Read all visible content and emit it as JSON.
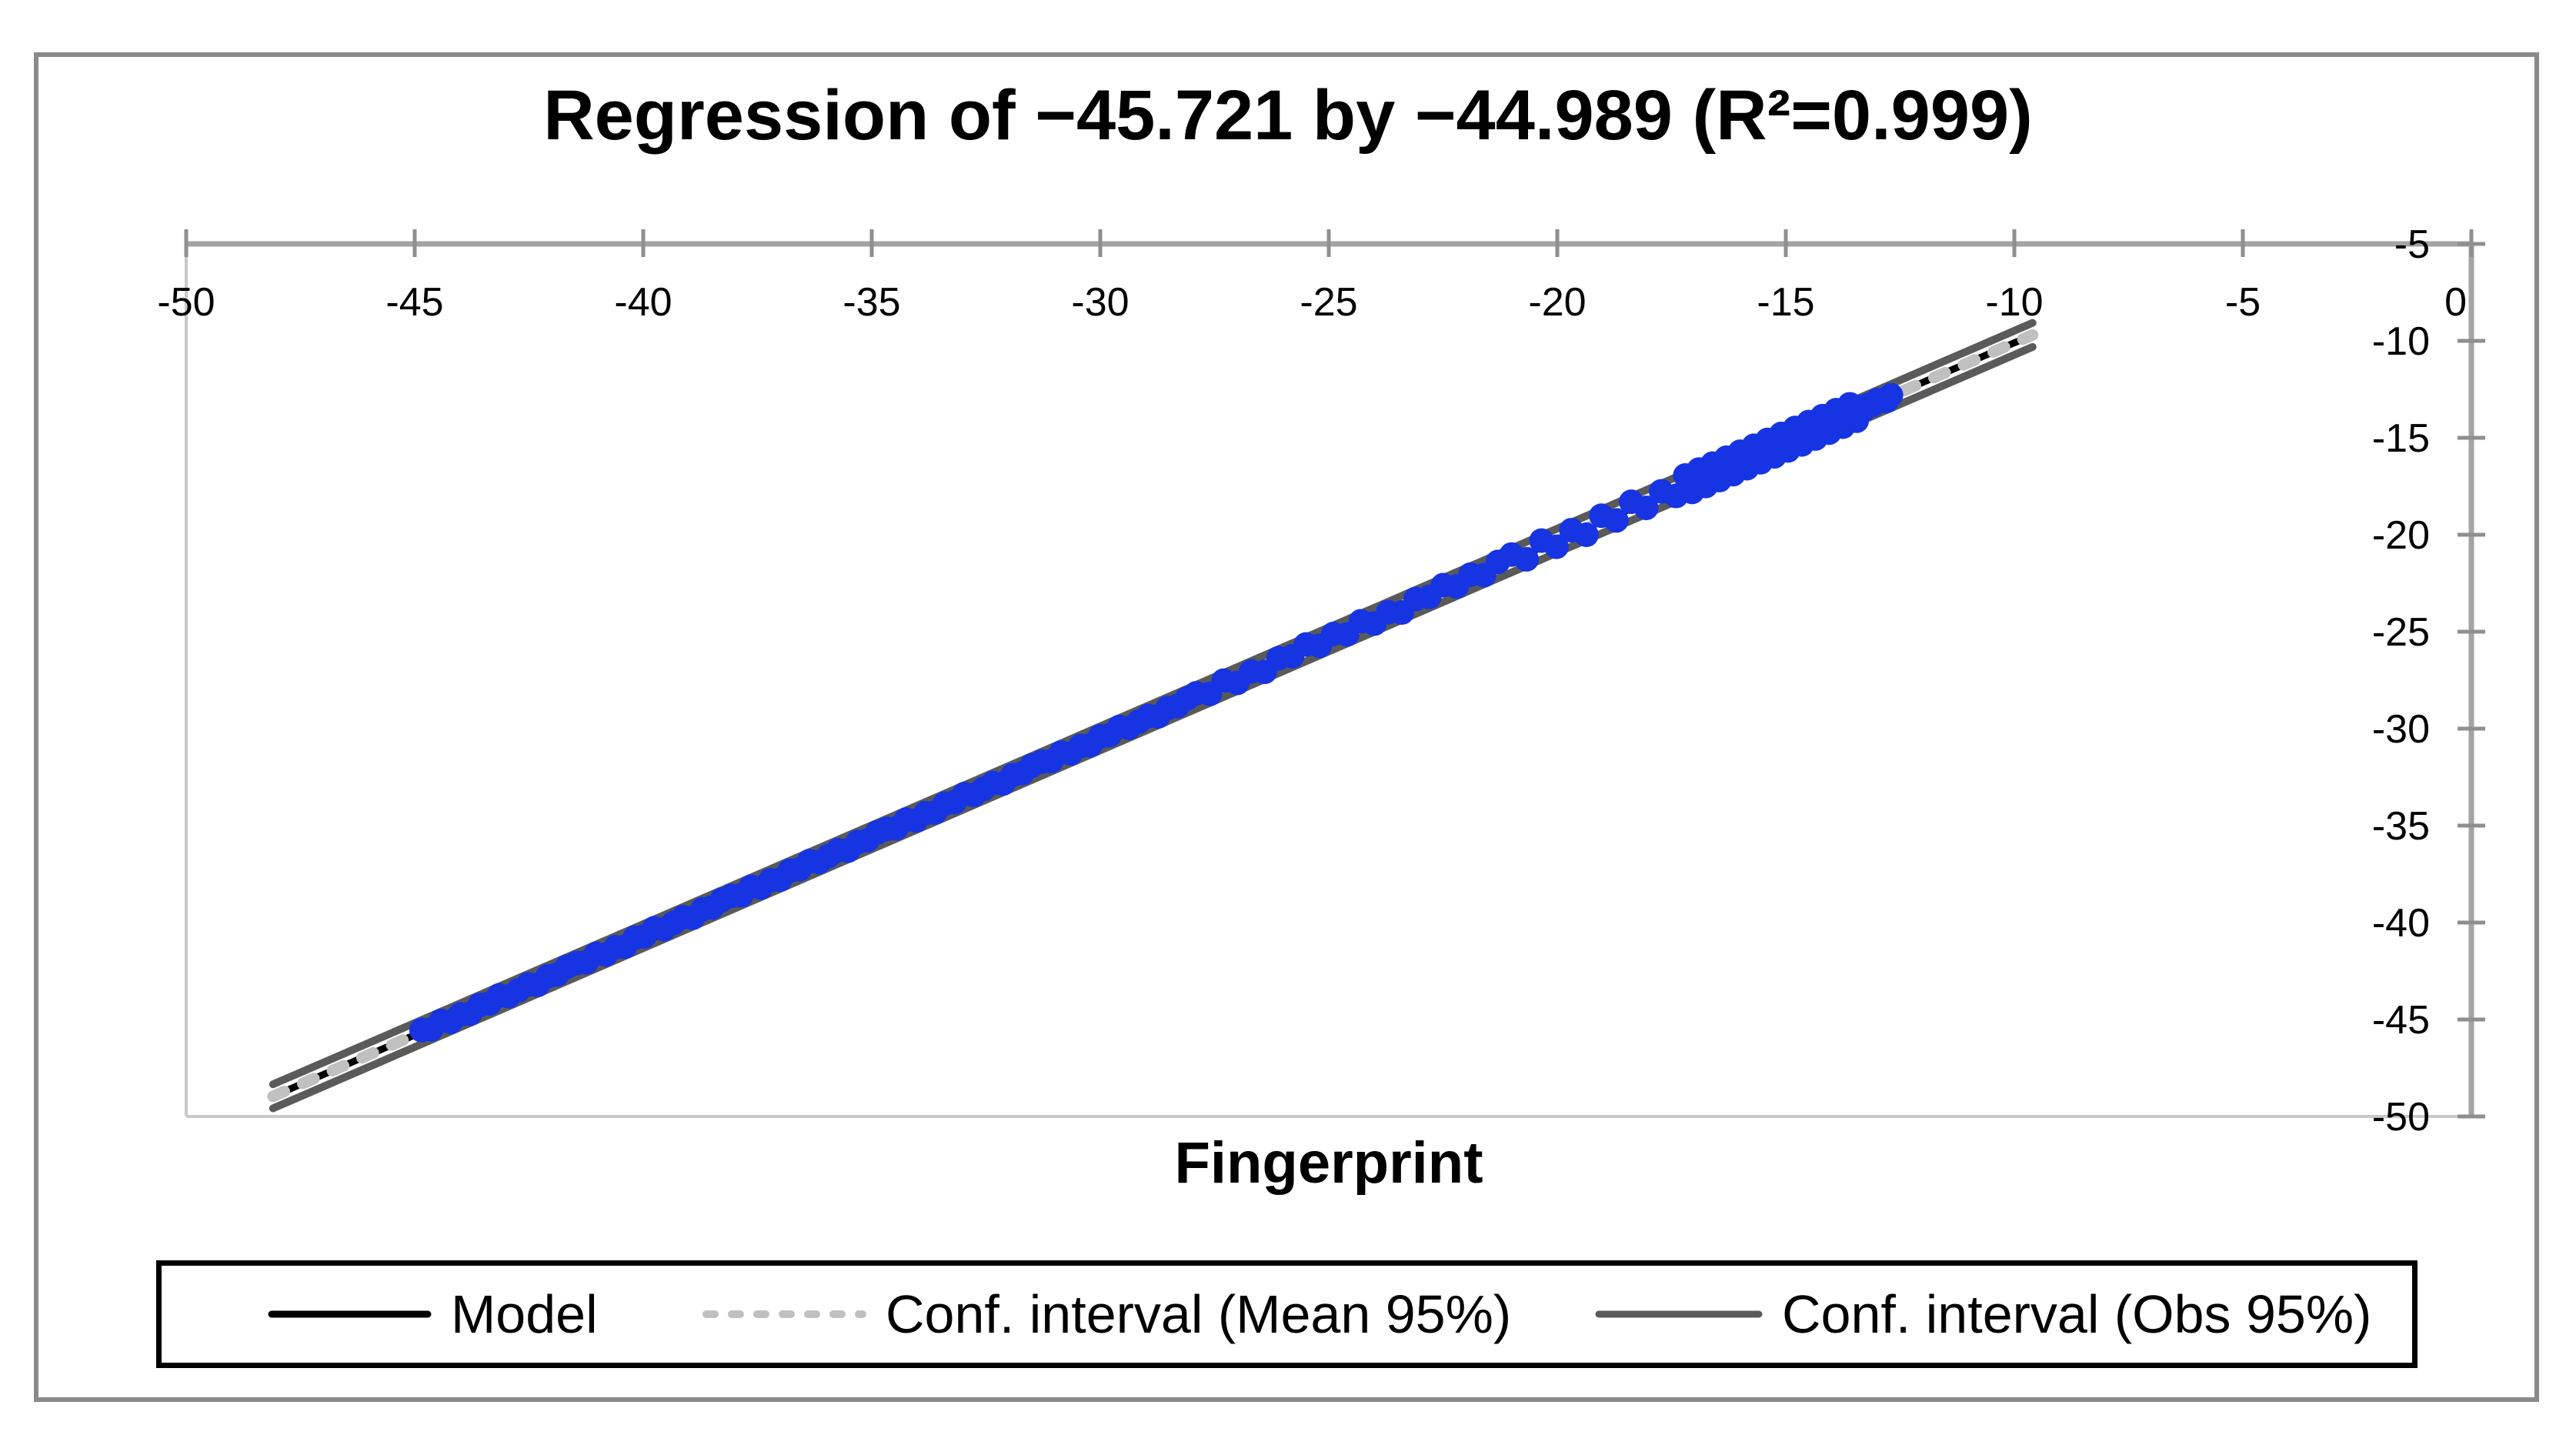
{
  "title": "Regression of −45.721 by −44.989 (R²=0.999)",
  "x_axis_title": "Fingerprint",
  "legend": {
    "model_label": "Model",
    "mean_label": "Conf. interval (Mean 95%)",
    "obs_label": "Conf. interval (Obs 95%)"
  },
  "colors": {
    "point_blue": "#1634e1",
    "model_black": "#000000",
    "ci_mean_silver": "#c0c0c0",
    "ci_obs_gray": "#5a5a5a",
    "axis_gray": "#a3a3a3",
    "tick_gray": "#8f8f8f",
    "plot_border_gray": "#c9c9c9",
    "outer_border_gray": "#8a8a8a",
    "text_black": "#000000"
  },
  "chart_data": {
    "type": "scatter",
    "title": "Regression of −45.721 by −44.989 (R²=0.999)",
    "xlabel": "Fingerprint",
    "ylabel": "",
    "r_squared": 0.999,
    "xlim": [
      -50,
      0
    ],
    "ylim": [
      -50,
      -5
    ],
    "x_ticks": [
      -50,
      -45,
      -40,
      -35,
      -30,
      -25,
      -20,
      -15,
      -10,
      -5,
      0
    ],
    "y_ticks": [
      -5,
      -10,
      -15,
      -20,
      -25,
      -30,
      -35,
      -40,
      -45,
      -50
    ],
    "grid": false,
    "legend_position": "bottom",
    "axis_position": {
      "x_axis": "top",
      "y_axis": "right"
    },
    "model_line": {
      "x_start": -48.1,
      "x_end": -9.6,
      "slope": 1.02,
      "intercept": 0.1
    },
    "ci_obs_offset": 0.62,
    "series": [
      {
        "name": "Model",
        "style": "solid-black"
      },
      {
        "name": "Conf. interval (Mean 95%)",
        "style": "dashed-silver"
      },
      {
        "name": "Conf. interval (Obs 95%)",
        "style": "solid-darkgray"
      }
    ],
    "point_runs": [
      {
        "x_from": -44.85,
        "x_to": -28.1,
        "count": 80,
        "residuals": [
          0.1,
          -0.08,
          0.14,
          -0.12,
          0.04,
          -0.14,
          0.1,
          -0.04,
          0.16,
          -0.1,
          0,
          0.08,
          -0.16,
          0.06,
          -0.06,
          0.12
        ]
      },
      {
        "x_from": -27.9,
        "x_to": -21.3,
        "count": 23,
        "residuals": [
          0.18,
          -0.15,
          0.22,
          -0.2,
          0.08,
          -0.24,
          0.15,
          -0.05,
          0.25,
          -0.12
        ]
      },
      {
        "x_from": -21.0,
        "x_to": -17.4,
        "count": 12,
        "residuals": [
          0.3,
          -0.28,
          0.35,
          -0.3,
          0.22,
          -0.35
        ]
      },
      {
        "x_from": -17.2,
        "x_to": -13.6,
        "count": 13,
        "residuals": [
          0.5
        ]
      },
      {
        "x_from": -17.05,
        "x_to": -13.45,
        "count": 13,
        "residuals": [
          -0.5
        ]
      },
      {
        "x_from": -13.4,
        "x_to": -12.7,
        "count": 8,
        "residuals": [
          0.15,
          -0.1,
          0.05,
          -0.05,
          0.1,
          0,
          -0.15,
          0.05
        ]
      }
    ],
    "point_radius_px": 16
  }
}
